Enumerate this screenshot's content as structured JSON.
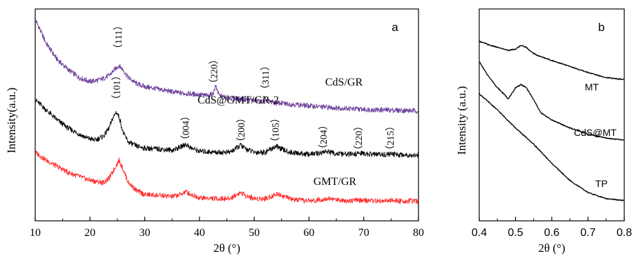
{
  "chart_data": [
    {
      "type": "line",
      "panel_label": "a",
      "xlabel": "2θ (°)",
      "ylabel": "Intensity(a.u.)",
      "xlim": [
        10,
        80
      ],
      "x_ticks": [
        "10",
        "20",
        "30",
        "40",
        "50",
        "60",
        "70",
        "80"
      ],
      "y_ticks": [],
      "grid": false,
      "series": [
        {
          "name": "CdS/GR",
          "color": "#6a3d9a",
          "x": [
            10,
            12,
            14,
            16,
            18,
            20,
            22,
            23.5,
            24.5,
            25.3,
            26,
            27,
            28.5,
            30,
            32,
            34,
            36,
            38,
            40,
            41.5,
            42.5,
            43,
            43.6,
            45,
            47,
            49,
            50.5,
            51.5,
            52,
            52.8,
            54,
            56,
            58,
            60,
            62,
            65,
            68,
            72,
            76,
            80
          ],
          "y": [
            100,
            88,
            80,
            75,
            71,
            69,
            70,
            72,
            75,
            77,
            75,
            71,
            68,
            66.5,
            65.5,
            64.5,
            63.5,
            63,
            62.5,
            62,
            63,
            67,
            62,
            61,
            60.5,
            60,
            59.5,
            59,
            60,
            59,
            58.5,
            58,
            57.5,
            57,
            56.5,
            56,
            55.5,
            55,
            54.8,
            54.5
          ]
        },
        {
          "name": "CdS@GMT/GR-2",
          "color": "#000000",
          "x": [
            10,
            12,
            14,
            16,
            18,
            19.5,
            21,
            22.5,
            23.5,
            24.2,
            24.8,
            25.4,
            26,
            27,
            28.5,
            30,
            33,
            35,
            36.5,
            37.5,
            38.5,
            40,
            43,
            45.5,
            46.5,
            47.5,
            48.5,
            50,
            52,
            53,
            54,
            55,
            56.5,
            58,
            60,
            62,
            63,
            64.5,
            66,
            68,
            69.5,
            71,
            73,
            75,
            76.5,
            78,
            80
          ],
          "y": [
            60,
            55,
            50,
            46,
            43,
            41,
            40,
            42,
            46,
            51,
            54,
            51,
            44,
            39,
            37,
            36,
            35.5,
            35,
            36.5,
            38,
            36,
            34.5,
            34,
            34,
            35.5,
            37.5,
            35.5,
            34,
            34,
            35.5,
            37,
            35.5,
            34,
            33.5,
            33,
            33.5,
            34.5,
            33.5,
            33,
            33,
            33.5,
            33,
            32.8,
            33,
            32.8,
            32.7,
            32.5
          ]
        },
        {
          "name": "GMT/GR",
          "color": "#ff2b2b",
          "x": [
            10,
            12,
            14,
            16,
            18,
            19.5,
            21,
            22.5,
            23.5,
            24.5,
            25.3,
            26,
            27,
            28.5,
            30,
            33,
            35,
            36.5,
            37.5,
            38.5,
            40,
            43,
            45.5,
            46.5,
            47.5,
            48.5,
            50,
            52,
            53,
            54.3,
            55.5,
            57,
            59,
            61,
            62.5,
            63.5,
            65,
            67,
            69,
            71,
            73,
            75,
            77,
            80
          ],
          "y": [
            34,
            30,
            27,
            24,
            22,
            20.5,
            19.5,
            19,
            21,
            26,
            30,
            26,
            19,
            15,
            13,
            12.5,
            12,
            13,
            14.5,
            13,
            11.5,
            11,
            11,
            12.5,
            14,
            12.5,
            11,
            11,
            12,
            13.5,
            12,
            10.5,
            10,
            10,
            10.8,
            11,
            10.5,
            10,
            10.2,
            10,
            9.8,
            10,
            9.8,
            9.7
          ]
        }
      ],
      "annotations": [
        {
          "text": "（111）",
          "x": 25.3,
          "y": 91
        },
        {
          "text": "（220）",
          "x": 42.8,
          "y": 74
        },
        {
          "text": "（311）",
          "x": 52.2,
          "y": 71
        },
        {
          "text": "（101）",
          "x": 25,
          "y": 66
        },
        {
          "text": "（004）",
          "x": 37.6,
          "y": 46
        },
        {
          "text": "（200）",
          "x": 47.8,
          "y": 45
        },
        {
          "text": "（105）",
          "x": 54,
          "y": 45
        },
        {
          "text": "（204）",
          "x": 62.8,
          "y": 41.5
        },
        {
          "text": "（220）",
          "x": 69.2,
          "y": 41
        },
        {
          "text": "（215）",
          "x": 75,
          "y": 41
        }
      ]
    },
    {
      "type": "line",
      "panel_label": "b",
      "xlabel": "2θ (°)",
      "ylabel": "Intensity (a.u.)",
      "xlim": [
        0.4,
        0.8
      ],
      "x_ticks": [
        "0.4",
        "0.5",
        "0.6",
        "0.7",
        "0.8"
      ],
      "y_ticks": [],
      "grid": false,
      "series": [
        {
          "name": "MT",
          "color": "#000000",
          "x": [
            0.4,
            0.43,
            0.46,
            0.48,
            0.5,
            0.515,
            0.53,
            0.545,
            0.56,
            0.6,
            0.65,
            0.7,
            0.75,
            0.8
          ],
          "y": [
            89,
            87,
            85.5,
            84.5,
            85,
            87,
            86,
            83.5,
            82,
            79.5,
            76.5,
            73.5,
            71,
            70
          ]
        },
        {
          "name": "CdS@MT",
          "color": "#000000",
          "x": [
            0.4,
            0.42,
            0.45,
            0.47,
            0.48,
            0.49,
            0.5,
            0.515,
            0.53,
            0.55,
            0.57,
            0.6,
            0.65,
            0.7,
            0.75,
            0.8
          ],
          "y": [
            79,
            73,
            66,
            62.5,
            60.5,
            63,
            66,
            67.5,
            66,
            60,
            53.5,
            50,
            46,
            43,
            41,
            40
          ]
        },
        {
          "name": "TP",
          "color": "#000000",
          "x": [
            0.4,
            0.45,
            0.5,
            0.55,
            0.6,
            0.65,
            0.7,
            0.75,
            0.8
          ],
          "y": [
            63,
            55,
            46,
            38,
            28.5,
            20,
            14,
            11,
            10
          ]
        }
      ]
    }
  ]
}
